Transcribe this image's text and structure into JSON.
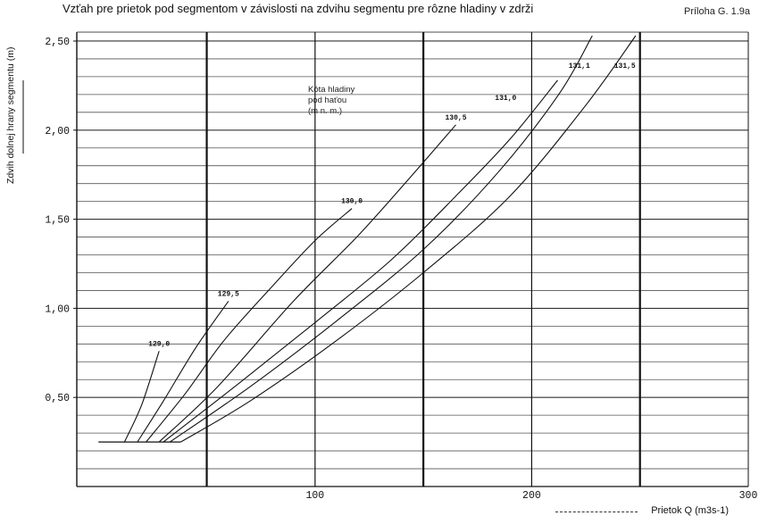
{
  "title": "Vzťah pre prietok pod segmentom v závislosti na zdvihu segmentu pre rôzne hladiny v zdrži",
  "annex": "Príloha G. 1.9a",
  "legend_note": [
    "Kóta hladiny",
    "pod haťou",
    "(m n. m.)"
  ],
  "chart_data": {
    "type": "line",
    "title": "Vzťah pre prietok pod segmentom v závislosti na zdvihu segmentu pre rôzne hladiny v zdrži",
    "xlabel": "Prietok Q (m3s-1)",
    "ylabel": "Zdvih dolnej hrany segmentu (m)",
    "xlim": [
      -10,
      300
    ],
    "ylim": [
      0.0,
      2.55
    ],
    "x_ticks": [
      100,
      200,
      300
    ],
    "x_tick_labels": [
      "100",
      "200",
      "300"
    ],
    "y_ticks": [
      0.5,
      1.0,
      1.5,
      2.0,
      2.5
    ],
    "y_tick_labels": [
      "0,50",
      "1,00",
      "1,50",
      "2,00",
      "2,50"
    ],
    "grid": true,
    "series": [
      {
        "name": "129,0",
        "x": [
          12,
          20,
          28
        ],
        "y": [
          0.25,
          0.46,
          0.76
        ]
      },
      {
        "name": "129,5",
        "x": [
          18,
          30,
          45,
          60
        ],
        "y": [
          0.25,
          0.48,
          0.78,
          1.04
        ]
      },
      {
        "name": "130,0",
        "x": [
          22,
          40,
          58,
          80,
          100,
          117
        ],
        "y": [
          0.25,
          0.52,
          0.82,
          1.12,
          1.38,
          1.56
        ]
      },
      {
        "name": "130,5",
        "x": [
          28,
          55,
          90,
          120,
          145,
          165
        ],
        "y": [
          0.25,
          0.56,
          1.04,
          1.41,
          1.75,
          2.03
        ]
      },
      {
        "name": "131,0",
        "x": [
          30,
          65,
          100,
          135,
          165,
          190,
          212
        ],
        "y": [
          0.25,
          0.58,
          0.92,
          1.27,
          1.63,
          1.95,
          2.28
        ]
      },
      {
        "name": "131,1",
        "x": [
          33,
          70,
          110,
          150,
          185,
          213,
          228
        ],
        "y": [
          0.25,
          0.56,
          0.93,
          1.33,
          1.77,
          2.21,
          2.53
        ]
      },
      {
        "name": "131,5",
        "x": [
          38,
          70,
          110,
          150,
          190,
          225,
          248
        ],
        "y": [
          0.25,
          0.48,
          0.82,
          1.2,
          1.63,
          2.14,
          2.53
        ]
      }
    ]
  },
  "series_labels": [
    {
      "text": "129,0",
      "x": 28,
      "y": 0.79
    },
    {
      "text": "129,5",
      "x": 60,
      "y": 1.07
    },
    {
      "text": "130,0",
      "x": 117,
      "y": 1.59
    },
    {
      "text": "130,5",
      "x": 165,
      "y": 2.06
    },
    {
      "text": "131,0",
      "x": 188,
      "y": 2.17
    },
    {
      "text": "131,1",
      "x": 222,
      "y": 2.35
    },
    {
      "text": "131,5",
      "x": 243,
      "y": 2.35
    }
  ]
}
